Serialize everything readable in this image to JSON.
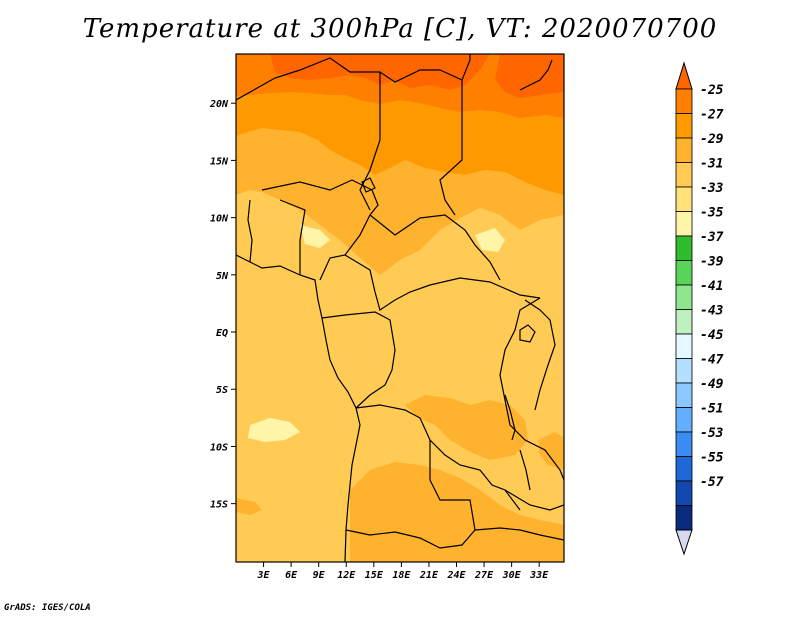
{
  "title": "Temperature at 300hPa [C], VT: 2020070700",
  "footer": "GrADS: IGES/COLA",
  "map": {
    "lat_labels": [
      {
        "lat": 20,
        "label": "20N"
      },
      {
        "lat": 15,
        "label": "15N"
      },
      {
        "lat": 10,
        "label": "10N"
      },
      {
        "lat": 5,
        "label": "5N"
      },
      {
        "lat": 0,
        "label": "EQ"
      },
      {
        "lat": -5,
        "label": "5S"
      },
      {
        "lat": -10,
        "label": "10S"
      },
      {
        "lat": -15,
        "label": "15S"
      }
    ],
    "lon_labels": [
      {
        "lon": 3,
        "label": "3E"
      },
      {
        "lon": 6,
        "label": "6E"
      },
      {
        "lon": 9,
        "label": "9E"
      },
      {
        "lon": 12,
        "label": "12E"
      },
      {
        "lon": 15,
        "label": "15E"
      },
      {
        "lon": 18,
        "label": "18E"
      },
      {
        "lon": 21,
        "label": "21E"
      },
      {
        "lon": 24,
        "label": "24E"
      },
      {
        "lon": 27,
        "label": "27E"
      },
      {
        "lon": 30,
        "label": "30E"
      },
      {
        "lon": 33,
        "label": "33E"
      }
    ]
  },
  "colorbar": {
    "labels": [
      "-25",
      "-27",
      "-29",
      "-31",
      "-33",
      "-35",
      "-37",
      "-39",
      "-41",
      "-43",
      "-45",
      "-47",
      "-49",
      "-51",
      "-53",
      "-55",
      "-57"
    ],
    "colors": [
      "#ff6600",
      "#ff7f00",
      "#ff9900",
      "#ffb22e",
      "#ffcb55",
      "#ffe27a",
      "#fff5a8",
      "#2fbd2f",
      "#59d459",
      "#8ee68e",
      "#bff0bf",
      "#e6f8ff",
      "#b3e0ff",
      "#8cc8ff",
      "#63aeff",
      "#3a8cf0",
      "#1f68d8",
      "#1248b0",
      "#0a2a80",
      "#d8d8f0"
    ]
  },
  "colors": {
    "orange_dark": "#ff6600",
    "orange": "#ff9900",
    "orange_light": "#ffb22e",
    "yellow_orange": "#ffcb55",
    "yellow": "#ffe27a",
    "pale_yellow": "#fff5a8"
  }
}
